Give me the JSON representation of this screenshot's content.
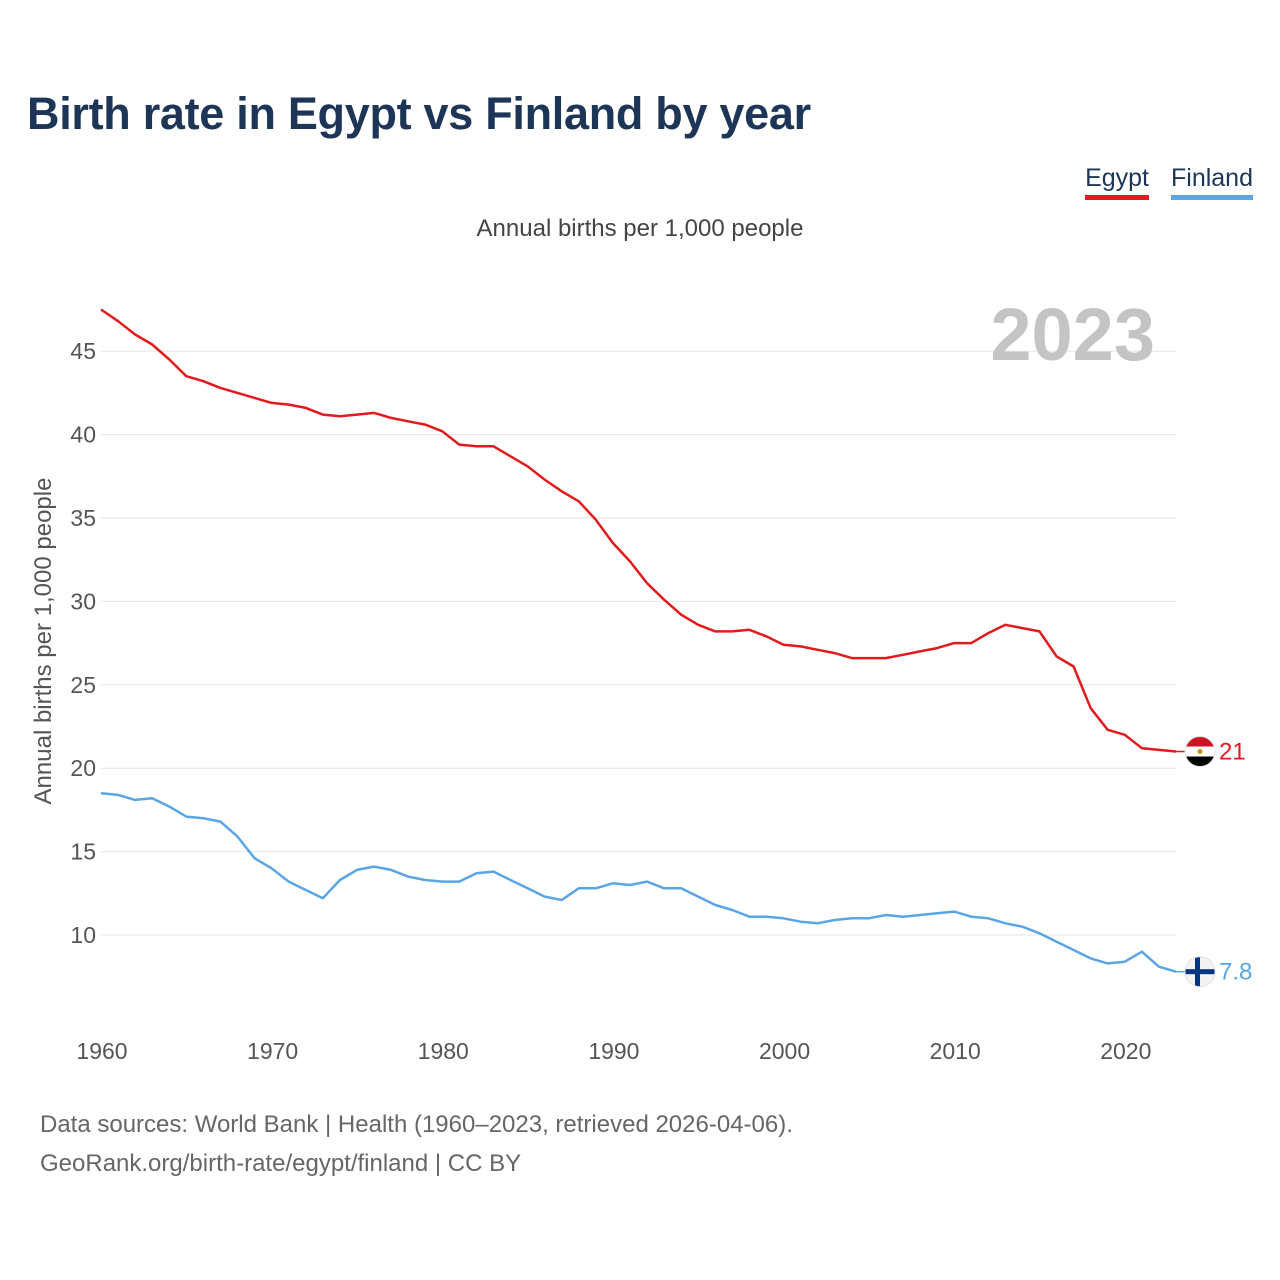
{
  "title": "Birth rate in Egypt vs Finland by year",
  "subtitle": "Annual births per 1,000 people",
  "year_badge": "2023",
  "legend": [
    {
      "label": "Egypt",
      "color": "#e31a1c"
    },
    {
      "label": "Finland",
      "color": "#5aa5e6"
    }
  ],
  "source": {
    "line1": "Data sources: World Bank | Health (1960–2023, retrieved 2026-04-06).",
    "line2": "GeoRank.org/birth-rate/egypt/finland | CC BY"
  },
  "chart_data": {
    "type": "line",
    "title": "Birth rate in Egypt vs Finland by year",
    "ylabel": "Annual births per 1,000 people",
    "xlabel": "",
    "xlim": [
      1960,
      2023
    ],
    "ylim": [
      5,
      48
    ],
    "grid": true,
    "x_ticks": [
      1960,
      1970,
      1980,
      1990,
      2000,
      2010,
      2020
    ],
    "y_ticks": [
      10,
      15,
      20,
      25,
      30,
      35,
      40,
      45
    ],
    "x": [
      1960,
      1961,
      1962,
      1963,
      1964,
      1965,
      1966,
      1967,
      1968,
      1969,
      1970,
      1971,
      1972,
      1973,
      1974,
      1975,
      1976,
      1977,
      1978,
      1979,
      1980,
      1981,
      1982,
      1983,
      1984,
      1985,
      1986,
      1987,
      1988,
      1989,
      1990,
      1991,
      1992,
      1993,
      1994,
      1995,
      1996,
      1997,
      1998,
      1999,
      2000,
      2001,
      2002,
      2003,
      2004,
      2005,
      2006,
      2007,
      2008,
      2009,
      2010,
      2011,
      2012,
      2013,
      2014,
      2015,
      2016,
      2017,
      2018,
      2019,
      2020,
      2021,
      2022,
      2023
    ],
    "series": [
      {
        "name": "Egypt",
        "color": "#e31a1c",
        "end_label": "21",
        "values": [
          47.5,
          46.8,
          46.0,
          45.4,
          44.5,
          43.5,
          43.2,
          42.8,
          42.5,
          42.2,
          41.9,
          41.8,
          41.6,
          41.2,
          41.1,
          41.2,
          41.3,
          41.0,
          40.8,
          40.6,
          40.2,
          39.4,
          39.3,
          39.3,
          38.7,
          38.1,
          37.3,
          36.6,
          36.0,
          34.9,
          33.5,
          32.4,
          31.1,
          30.1,
          29.2,
          28.6,
          28.2,
          28.2,
          28.3,
          27.9,
          27.4,
          27.3,
          27.1,
          26.9,
          26.6,
          26.6,
          26.6,
          26.8,
          27.0,
          27.2,
          27.5,
          27.5,
          28.1,
          28.6,
          28.4,
          28.2,
          26.7,
          26.1,
          23.6,
          22.3,
          22.0,
          21.2,
          21.1,
          21.0
        ]
      },
      {
        "name": "Finland",
        "color": "#5aa5e6",
        "end_label": "7.8",
        "values": [
          18.5,
          18.4,
          18.1,
          18.2,
          17.7,
          17.1,
          17.0,
          16.8,
          15.9,
          14.6,
          14.0,
          13.2,
          12.7,
          12.2,
          13.3,
          13.9,
          14.1,
          13.9,
          13.5,
          13.3,
          13.2,
          13.2,
          13.7,
          13.8,
          13.3,
          12.8,
          12.3,
          12.1,
          12.8,
          12.8,
          13.1,
          13.0,
          13.2,
          12.8,
          12.8,
          12.3,
          11.8,
          11.5,
          11.1,
          11.1,
          11.0,
          10.8,
          10.7,
          10.9,
          11.0,
          11.0,
          11.2,
          11.1,
          11.2,
          11.3,
          11.4,
          11.1,
          11.0,
          10.7,
          10.5,
          10.1,
          9.6,
          9.1,
          8.6,
          8.3,
          8.4,
          9.0,
          8.1,
          7.8
        ]
      }
    ]
  }
}
